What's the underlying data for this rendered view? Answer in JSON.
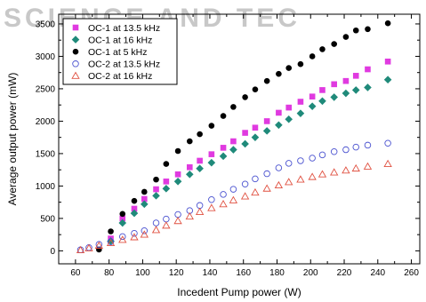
{
  "watermark": "SCIENCE AND TEC",
  "chart_data": {
    "type": "scatter",
    "title": "",
    "xlabel": "Incedent Pump power (W)",
    "ylabel": "Average output power (mW)",
    "xlim": [
      50,
      265
    ],
    "ylim": [
      -200,
      3650
    ],
    "xticks": [
      60,
      80,
      100,
      120,
      140,
      160,
      180,
      200,
      220,
      240,
      260
    ],
    "yticks": [
      0,
      500,
      1000,
      1500,
      2000,
      2500,
      3000,
      3500
    ],
    "grid": false,
    "legend_position": "top-left",
    "series": [
      {
        "name": "OC-1 at 13.5 kHz",
        "color": "#e03ae0",
        "marker": "square-filled",
        "x": [
          81,
          88,
          95,
          101,
          108,
          114,
          121,
          128,
          134,
          141,
          148,
          154,
          161,
          167,
          174,
          181,
          187,
          194,
          201,
          207,
          214,
          221,
          227,
          234,
          246
        ],
        "y": [
          190,
          500,
          650,
          800,
          950,
          1070,
          1180,
          1290,
          1390,
          1490,
          1590,
          1690,
          1820,
          1900,
          2000,
          2130,
          2210,
          2300,
          2380,
          2480,
          2570,
          2620,
          2700,
          2800,
          2920
        ]
      },
      {
        "name": "OC-1 at 16 kHz",
        "color": "#1f8a7a",
        "marker": "diamond-filled",
        "x": [
          81,
          88,
          95,
          101,
          108,
          114,
          121,
          128,
          134,
          141,
          148,
          154,
          161,
          167,
          174,
          181,
          187,
          194,
          201,
          207,
          214,
          221,
          227,
          234,
          246
        ],
        "y": [
          150,
          430,
          580,
          720,
          850,
          960,
          1070,
          1180,
          1270,
          1360,
          1460,
          1560,
          1650,
          1750,
          1850,
          1940,
          2030,
          2120,
          2230,
          2310,
          2370,
          2430,
          2480,
          2520,
          2640
        ]
      },
      {
        "name": "OC-1 at 5 kHz",
        "color": "#000000",
        "marker": "circle-filled",
        "x": [
          74,
          81,
          88,
          95,
          101,
          108,
          114,
          121,
          128,
          134,
          141,
          148,
          154,
          161,
          167,
          174,
          181,
          187,
          194,
          201,
          207,
          214,
          221,
          227,
          234,
          246
        ],
        "y": [
          20,
          300,
          570,
          770,
          910,
          1100,
          1340,
          1540,
          1690,
          1800,
          1930,
          2080,
          2220,
          2370,
          2490,
          2620,
          2730,
          2820,
          2880,
          3000,
          3110,
          3190,
          3300,
          3400,
          3420,
          3510
        ]
      },
      {
        "name": "OC-2 at 13.5 kHz",
        "color": "#4a52d0",
        "marker": "circle-open",
        "x": [
          63,
          68,
          74,
          81,
          88,
          95,
          101,
          108,
          114,
          121,
          128,
          134,
          141,
          148,
          154,
          161,
          167,
          174,
          181,
          187,
          194,
          201,
          207,
          214,
          221,
          227,
          234,
          246
        ],
        "y": [
          15,
          50,
          100,
          140,
          220,
          270,
          310,
          430,
          490,
          560,
          620,
          700,
          790,
          870,
          950,
          1030,
          1110,
          1190,
          1280,
          1350,
          1390,
          1430,
          1480,
          1530,
          1560,
          1600,
          1630,
          1660
        ]
      },
      {
        "name": "OC-2 at 16 kHz",
        "color": "#e05040",
        "marker": "triangle-open",
        "x": [
          63,
          68,
          74,
          81,
          88,
          95,
          101,
          108,
          114,
          121,
          128,
          134,
          141,
          148,
          154,
          161,
          167,
          174,
          181,
          187,
          194,
          201,
          207,
          214,
          221,
          227,
          234,
          246
        ],
        "y": [
          10,
          40,
          80,
          120,
          170,
          210,
          250,
          320,
          390,
          460,
          530,
          600,
          660,
          720,
          780,
          840,
          900,
          960,
          1010,
          1060,
          1100,
          1140,
          1180,
          1210,
          1240,
          1270,
          1300,
          1340
        ]
      }
    ]
  }
}
